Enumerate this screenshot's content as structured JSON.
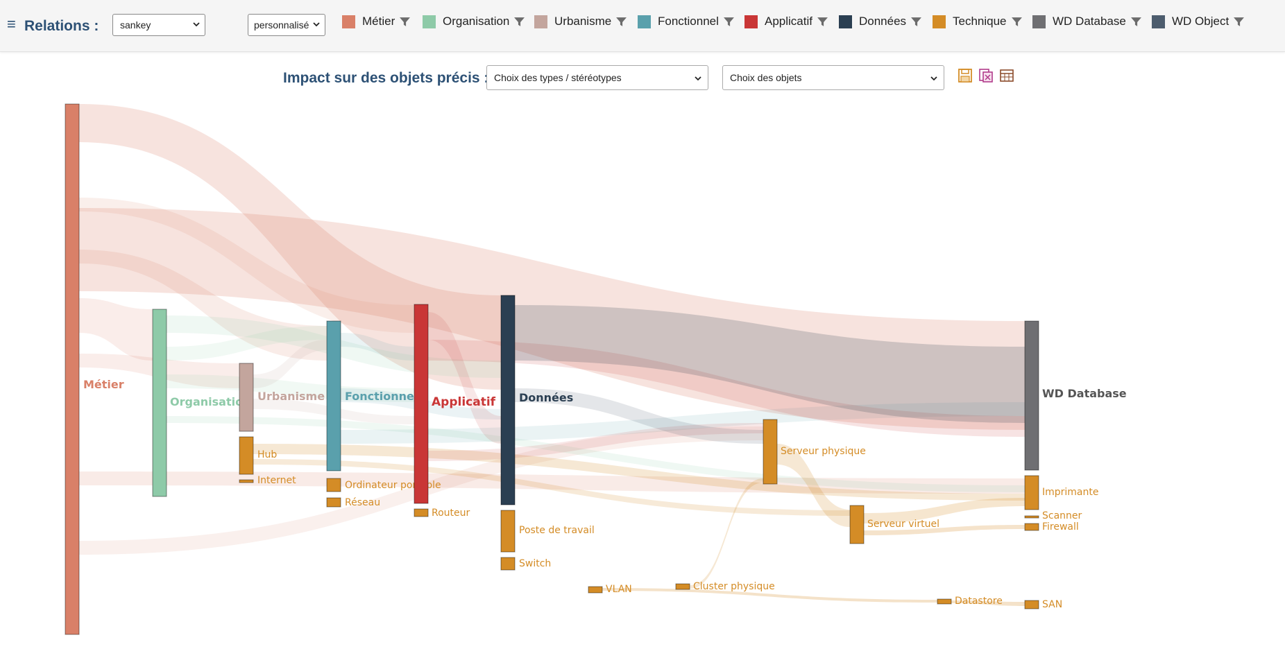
{
  "header": {
    "menu_icon": "≡",
    "relations_label": "Relations :",
    "view_select": "sankey",
    "mode_select": "personnalisé"
  },
  "legend": [
    {
      "label": "Métier",
      "color": "#d98068",
      "icon": "funnel-icon"
    },
    {
      "label": "Organisation",
      "color": "#8ecaa8",
      "icon": "funnel-icon"
    },
    {
      "label": "Urbanisme",
      "color": "#c3a59d",
      "icon": "funnel-icon"
    },
    {
      "label": "Fonctionnel",
      "color": "#5aa0ac",
      "icon": "funnel-icon"
    },
    {
      "label": "Applicatif",
      "color": "#c93636",
      "icon": "funnel-icon"
    },
    {
      "label": "Données",
      "color": "#2b3f52",
      "icon": "funnel-icon"
    },
    {
      "label": "Technique",
      "color": "#d48c26",
      "icon": "funnel-icon"
    },
    {
      "label": "WD Database",
      "color": "#6f6f72",
      "icon": "funnel-icon"
    },
    {
      "label": "WD Object",
      "color": "#4d5d6e",
      "icon": "funnel-icon"
    }
  ],
  "impact": {
    "label": "Impact sur des objets précis :",
    "types_placeholder": "Choix des types / stéréotypes",
    "objects_placeholder": "Choix des objets",
    "icons": [
      "save-icon",
      "export-pdf-icon",
      "table-icon"
    ]
  },
  "sankey": {
    "nodes": [
      {
        "id": "metier",
        "label": "Métier",
        "category": "Métier",
        "color": "#d98068"
      },
      {
        "id": "organisation",
        "label": "Organisation",
        "category": "Organisation",
        "color": "#8ecaa8"
      },
      {
        "id": "urbanisme",
        "label": "Urbanisme",
        "category": "Urbanisme",
        "color": "#c3a59d"
      },
      {
        "id": "hub",
        "label": "Hub",
        "category": "Technique",
        "color": "#d48c26"
      },
      {
        "id": "internet",
        "label": "Internet",
        "category": "Technique",
        "color": "#d48c26"
      },
      {
        "id": "fonctionnel",
        "label": "Fonctionnel",
        "category": "Fonctionnel",
        "color": "#5aa0ac"
      },
      {
        "id": "ordinateur",
        "label": "Ordinateur portable",
        "category": "Technique",
        "color": "#d48c26"
      },
      {
        "id": "reseau",
        "label": "Réseau",
        "category": "Technique",
        "color": "#d48c26"
      },
      {
        "id": "applicatif",
        "label": "Applicatif",
        "category": "Applicatif",
        "color": "#c93636"
      },
      {
        "id": "routeur",
        "label": "Routeur",
        "category": "Technique",
        "color": "#d48c26"
      },
      {
        "id": "donnees",
        "label": "Données",
        "category": "Données",
        "color": "#2b3f52"
      },
      {
        "id": "poste",
        "label": "Poste de travail",
        "category": "Technique",
        "color": "#d48c26"
      },
      {
        "id": "switch",
        "label": "Switch",
        "category": "Technique",
        "color": "#d48c26"
      },
      {
        "id": "vlan",
        "label": "VLAN",
        "category": "Technique",
        "color": "#d48c26"
      },
      {
        "id": "cluster",
        "label": "Cluster physique",
        "category": "Technique",
        "color": "#d48c26"
      },
      {
        "id": "serveurphys",
        "label": "Serveur physique",
        "category": "Technique",
        "color": "#d48c26"
      },
      {
        "id": "serveurvirt",
        "label": "Serveur virtuel",
        "category": "Technique",
        "color": "#d48c26"
      },
      {
        "id": "datastore",
        "label": "Datastore",
        "category": "Technique",
        "color": "#d48c26"
      },
      {
        "id": "wddatabase",
        "label": "WD Database",
        "category": "WD Database",
        "color": "#6f6f72"
      },
      {
        "id": "imprimante",
        "label": "Imprimante",
        "category": "Technique",
        "color": "#d48c26"
      },
      {
        "id": "scanner",
        "label": "Scanner",
        "category": "Technique",
        "color": "#d48c26"
      },
      {
        "id": "firewall",
        "label": "Firewall",
        "category": "Technique",
        "color": "#d48c26"
      },
      {
        "id": "san",
        "label": "SAN",
        "category": "Technique",
        "color": "#d48c26"
      }
    ],
    "links": [
      {
        "source": "metier",
        "target": "donnees"
      },
      {
        "source": "metier",
        "target": "wddatabase"
      },
      {
        "source": "metier",
        "target": "applicatif"
      },
      {
        "source": "metier",
        "target": "fonctionnel"
      },
      {
        "source": "metier",
        "target": "organisation"
      },
      {
        "source": "metier",
        "target": "urbanisme"
      },
      {
        "source": "metier",
        "target": "imprimante"
      },
      {
        "source": "metier",
        "target": "serveurphys"
      },
      {
        "source": "organisation",
        "target": "donnees"
      },
      {
        "source": "organisation",
        "target": "fonctionnel"
      },
      {
        "source": "organisation",
        "target": "applicatif"
      },
      {
        "source": "organisation",
        "target": "imprimante"
      },
      {
        "source": "urbanisme",
        "target": "fonctionnel"
      },
      {
        "source": "urbanisme",
        "target": "applicatif"
      },
      {
        "source": "hub",
        "target": "imprimante"
      },
      {
        "source": "hub",
        "target": "serveurvirt"
      },
      {
        "source": "fonctionnel",
        "target": "applicatif"
      },
      {
        "source": "fonctionnel",
        "target": "donnees"
      },
      {
        "source": "fonctionnel",
        "target": "wddatabase"
      },
      {
        "source": "applicatif",
        "target": "donnees"
      },
      {
        "source": "applicatif",
        "target": "wddatabase"
      },
      {
        "source": "applicatif",
        "target": "serveurphys"
      },
      {
        "source": "donnees",
        "target": "wddatabase"
      },
      {
        "source": "donnees",
        "target": "serveurphys"
      },
      {
        "source": "serveurphys",
        "target": "serveurvirt"
      },
      {
        "source": "serveurvirt",
        "target": "imprimante"
      },
      {
        "source": "serveurvirt",
        "target": "firewall"
      },
      {
        "source": "cluster",
        "target": "serveurphys"
      },
      {
        "source": "vlan",
        "target": "datastore"
      },
      {
        "source": "datastore",
        "target": "san"
      }
    ]
  }
}
